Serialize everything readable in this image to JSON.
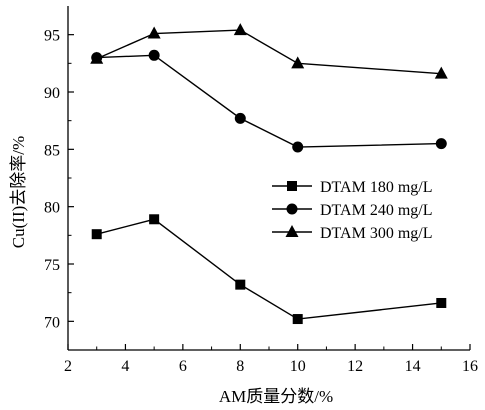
{
  "chart_data": {
    "type": "line",
    "title": "",
    "xlabel": "AM质量分数/%",
    "ylabel": "Cu(II)去除率/%",
    "xlim": [
      2,
      16
    ],
    "ylim": [
      67.5,
      97.5
    ],
    "xticks": [
      2,
      4,
      6,
      8,
      10,
      12,
      14,
      16
    ],
    "yticks": [
      70,
      75,
      80,
      85,
      90,
      95
    ],
    "grid": false,
    "legend_position": "center-right",
    "x": [
      3,
      5,
      8,
      10,
      15
    ],
    "series": [
      {
        "name": "DTAM 180 mg/L",
        "marker": "square",
        "values": [
          77.6,
          78.9,
          73.2,
          70.2,
          71.6
        ]
      },
      {
        "name": "DTAM 240 mg/L",
        "marker": "circle",
        "values": [
          93.0,
          93.2,
          87.7,
          85.2,
          85.5
        ]
      },
      {
        "name": "DTAM 300 mg/L",
        "marker": "triangle",
        "values": [
          92.9,
          95.1,
          95.4,
          92.5,
          91.6
        ]
      }
    ]
  }
}
